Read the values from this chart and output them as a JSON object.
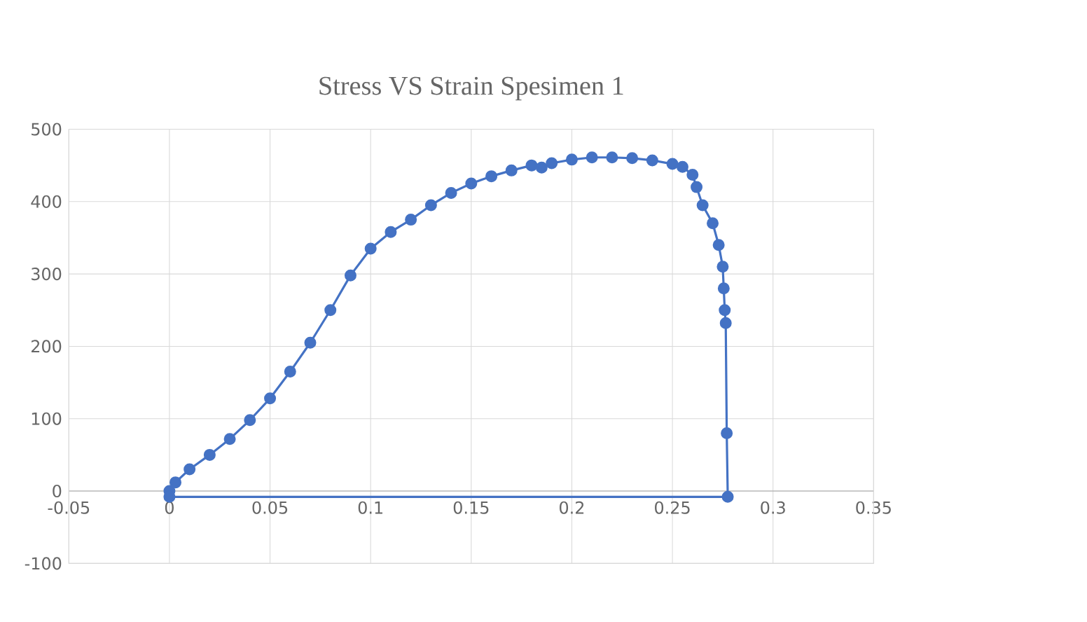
{
  "chart_data": {
    "type": "line",
    "title": "Stress VS Strain Spesimen 1",
    "series": [
      {
        "color": "#4472c4",
        "x": [
          0,
          0.003,
          0.01,
          0.02,
          0.03,
          0.04,
          0.05,
          0.06,
          0.07,
          0.08,
          0.09,
          0.1,
          0.11,
          0.12,
          0.13,
          0.14,
          0.15,
          0.16,
          0.17,
          0.18,
          0.185,
          0.19,
          0.2,
          0.21,
          0.22,
          0.23,
          0.24,
          0.25,
          0.255,
          0.26,
          0.262,
          0.265,
          0.27,
          0.273,
          0.275,
          0.2755,
          0.276,
          0.2765,
          0.277,
          0.2775,
          0
        ],
        "values": [
          0,
          12,
          30,
          50,
          72,
          98,
          128,
          165,
          205,
          250,
          298,
          335,
          358,
          375,
          395,
          412,
          425,
          435,
          443,
          450,
          447,
          453,
          458,
          461,
          461,
          460,
          457,
          452,
          448,
          437,
          420,
          395,
          370,
          340,
          310,
          280,
          250,
          232,
          80,
          -8,
          -8
        ]
      }
    ],
    "xlim": [
      -0.05,
      0.35
    ],
    "xticks": [
      -0.05,
      0,
      0.05,
      0.1,
      0.15,
      0.2,
      0.25,
      0.3,
      0.35
    ],
    "ylim": [
      -100,
      500
    ],
    "yticks": [
      -100,
      0,
      100,
      200,
      300,
      400,
      500
    ],
    "grid": true,
    "marker": "circle",
    "line_style": "solid"
  }
}
